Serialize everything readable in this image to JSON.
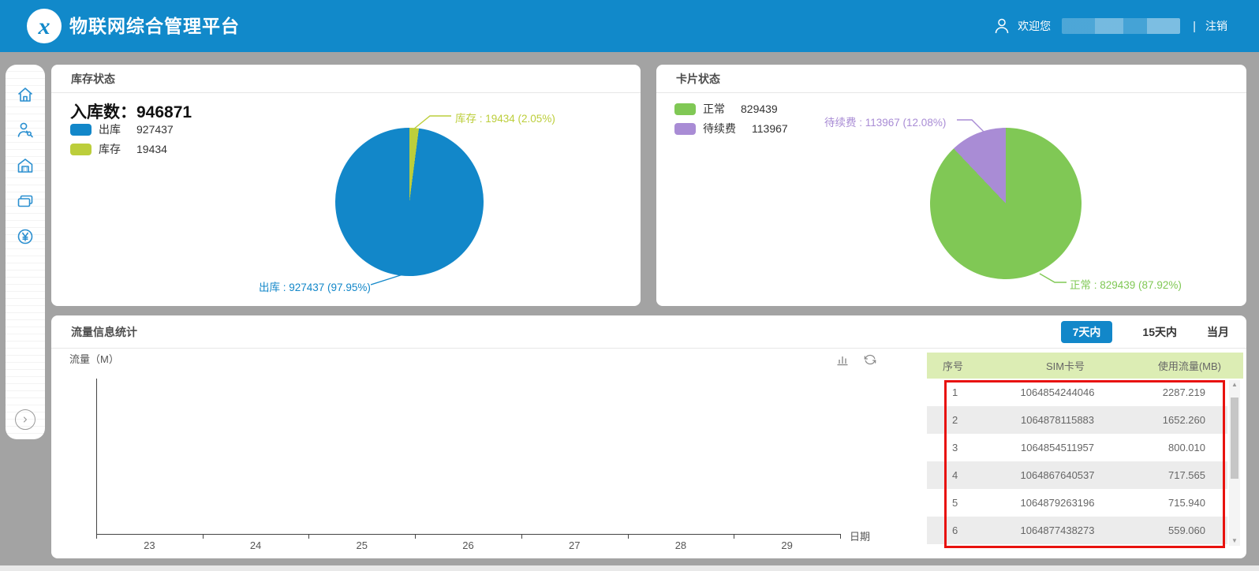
{
  "header": {
    "logo_text": "x",
    "app_title": "物联网综合管理平台",
    "welcome_label": "欢迎您",
    "separator": "|",
    "logout_label": "注销"
  },
  "sidebar": {
    "icons": [
      "home-icon",
      "user-service-icon",
      "warehouse-icon",
      "sim-card-icon",
      "billing-icon"
    ],
    "expand_icon": "chevron-right-icon"
  },
  "panels": {
    "inventory": {
      "title": "库存状态",
      "total_label": "入库数：",
      "total_value": "946871"
    },
    "cards": {
      "title": "卡片状态"
    },
    "traffic": {
      "title": "流量信息统计",
      "tabs": [
        {
          "label": "7天内",
          "active": true
        },
        {
          "label": "15天内",
          "active": false
        },
        {
          "label": "当月",
          "active": false
        }
      ],
      "ylabel": "流量（M）",
      "xlabel": "日期"
    }
  },
  "chart_data": [
    {
      "type": "pie",
      "title": "库存状态",
      "annotation": {
        "label": "入库数",
        "value": 946871
      },
      "series": [
        {
          "name": "出库",
          "value": 927437,
          "pct": 97.95,
          "color": "#1287c9"
        },
        {
          "name": "库存",
          "value": 19434,
          "pct": 2.05,
          "color": "#bcce3b"
        }
      ],
      "render_order": [
        1,
        0
      ],
      "label_format": "{name} : {value} ({pct}%)",
      "legend_position": "top-left"
    },
    {
      "type": "pie",
      "title": "卡片状态",
      "series": [
        {
          "name": "正常",
          "value": 829439,
          "pct": 87.92,
          "color": "#80c855"
        },
        {
          "name": "待续费",
          "value": 113967,
          "pct": 12.08,
          "color": "#a98cd5"
        }
      ],
      "render_order": [
        0,
        1
      ],
      "label_format": "{name} : {value} ({pct}%)",
      "legend_position": "top-left"
    },
    {
      "type": "bar",
      "title": "流量信息统计",
      "categories": [
        "23",
        "24",
        "25",
        "26",
        "27",
        "28",
        "29"
      ],
      "series": [],
      "xlabel": "日期",
      "ylabel": "流量（M）",
      "grid": false
    },
    {
      "type": "table",
      "headers": [
        "序号",
        "SIM卡号",
        "使用流量(MB)"
      ],
      "rows": [
        [
          "1",
          "1064854244046",
          "2287.219"
        ],
        [
          "2",
          "1064878115883",
          "1652.260"
        ],
        [
          "3",
          "1064854511957",
          "800.010"
        ],
        [
          "4",
          "1064867640537",
          "717.565"
        ],
        [
          "5",
          "1064879263196",
          "715.940"
        ],
        [
          "6",
          "1064877438273",
          "559.060"
        ]
      ]
    }
  ],
  "colors": {
    "header_blue": "#1189ca",
    "accent_blue": "#1287c9",
    "yellow_green": "#bcce3b",
    "green": "#80c855",
    "purple": "#a98cd5",
    "table_header_bg": "#dcedb4",
    "row_stripe": "#ececec",
    "highlight_red": "#e8120e",
    "page_bg": "#a3a3a3"
  }
}
